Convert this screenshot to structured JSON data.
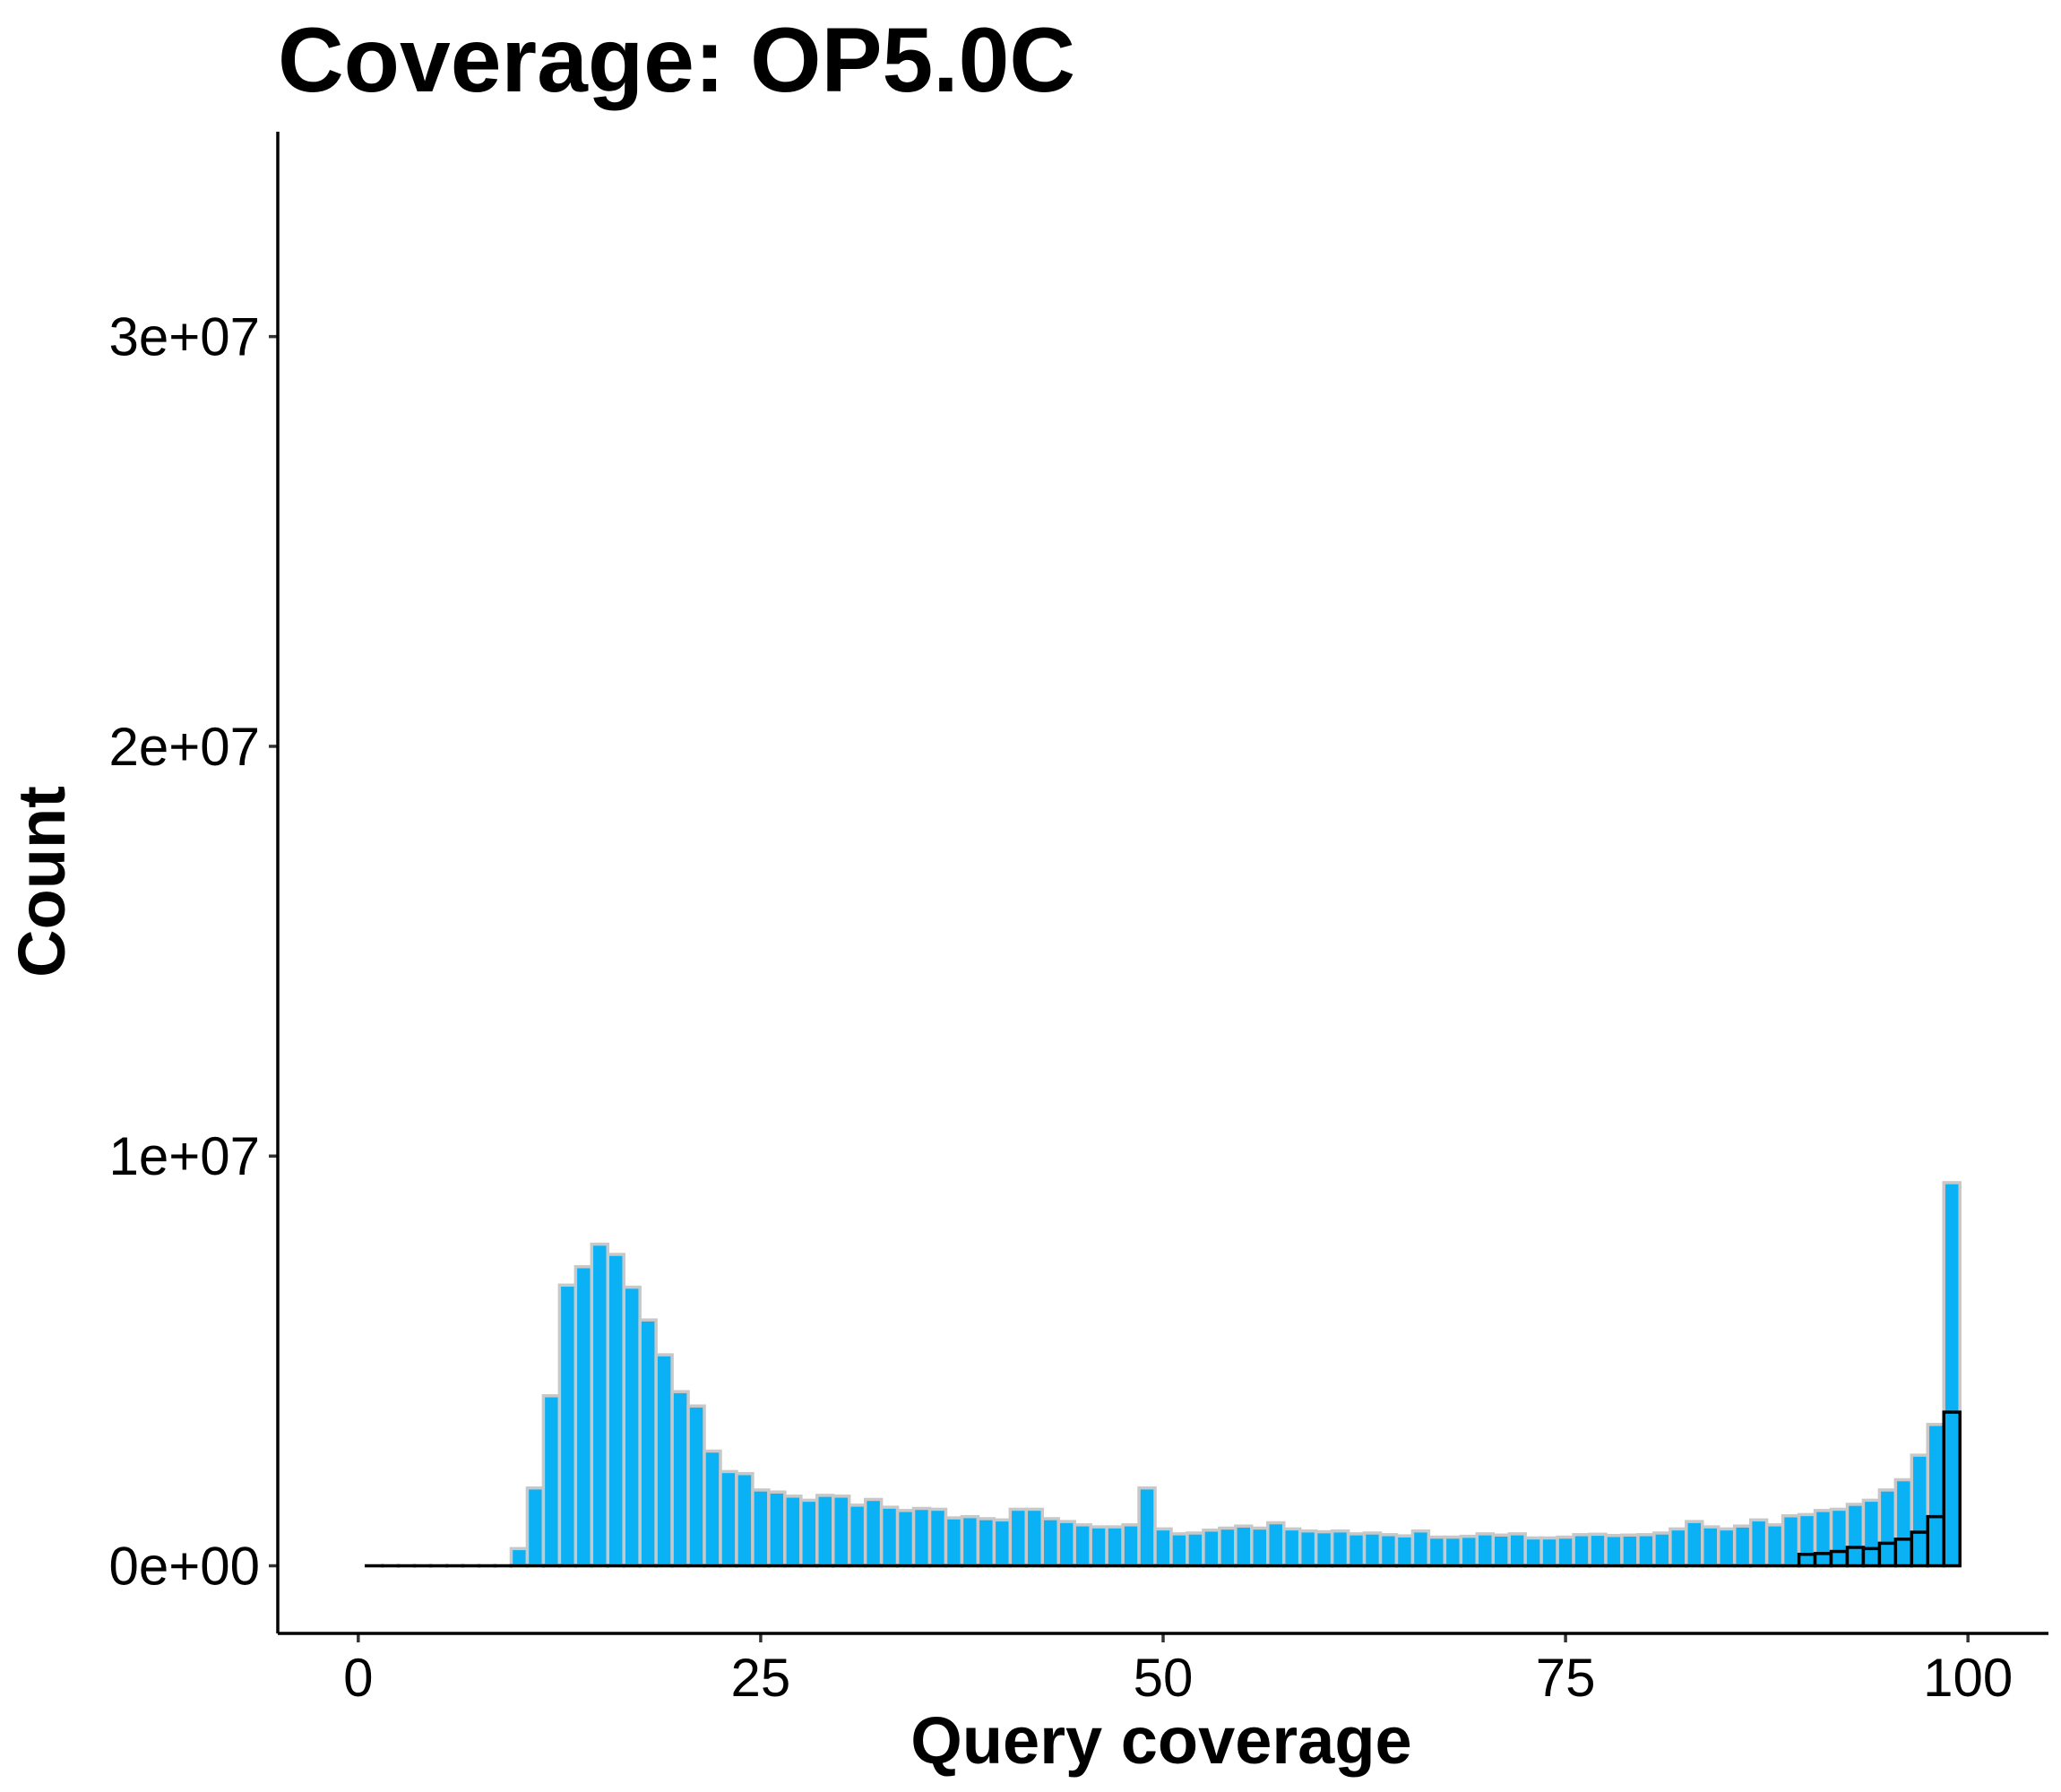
{
  "chart_data": {
    "type": "bar",
    "title": "Coverage: OP5.0C",
    "xlabel": "Query coverage",
    "ylabel": "Count",
    "xlim": [
      -5,
      105
    ],
    "ylim": [
      -1650000,
      35000000
    ],
    "x_ticks": [
      0,
      25,
      50,
      75,
      100
    ],
    "x_tick_labels": [
      "0",
      "25",
      "50",
      "75",
      "100"
    ],
    "y_ticks": [
      0,
      10000000,
      20000000,
      30000000
    ],
    "y_tick_labels": [
      "0e+00",
      "1e+07",
      "2e+07",
      "3e+07"
    ],
    "grid": false,
    "legend": "none",
    "bin_width": 1,
    "series": [
      {
        "fill": "#0AB1F5",
        "outline": "#C8C8C8",
        "bins": [
          {
            "x": 1,
            "value": 0
          },
          {
            "x": 2,
            "value": 0
          },
          {
            "x": 3,
            "value": 0
          },
          {
            "x": 4,
            "value": 0
          },
          {
            "x": 5,
            "value": 0
          },
          {
            "x": 6,
            "value": 0
          },
          {
            "x": 7,
            "value": 0
          },
          {
            "x": 8,
            "value": 0
          },
          {
            "x": 9,
            "value": 0
          },
          {
            "x": 10,
            "value": 420000
          },
          {
            "x": 11,
            "value": 1900000
          },
          {
            "x": 12,
            "value": 4150000
          },
          {
            "x": 13,
            "value": 6850000
          },
          {
            "x": 14,
            "value": 7300000
          },
          {
            "x": 15,
            "value": 7850000
          },
          {
            "x": 16,
            "value": 7600000
          },
          {
            "x": 17,
            "value": 6800000
          },
          {
            "x": 18,
            "value": 6000000
          },
          {
            "x": 19,
            "value": 5150000
          },
          {
            "x": 20,
            "value": 4250000
          },
          {
            "x": 21,
            "value": 3900000
          },
          {
            "x": 22,
            "value": 2800000
          },
          {
            "x": 23,
            "value": 2300000
          },
          {
            "x": 24,
            "value": 2250000
          },
          {
            "x": 25,
            "value": 1850000
          },
          {
            "x": 26,
            "value": 1800000
          },
          {
            "x": 27,
            "value": 1700000
          },
          {
            "x": 28,
            "value": 1600000
          },
          {
            "x": 29,
            "value": 1720000
          },
          {
            "x": 30,
            "value": 1700000
          },
          {
            "x": 31,
            "value": 1480000
          },
          {
            "x": 32,
            "value": 1620000
          },
          {
            "x": 33,
            "value": 1430000
          },
          {
            "x": 34,
            "value": 1350000
          },
          {
            "x": 35,
            "value": 1400000
          },
          {
            "x": 36,
            "value": 1380000
          },
          {
            "x": 37,
            "value": 1170000
          },
          {
            "x": 38,
            "value": 1200000
          },
          {
            "x": 39,
            "value": 1150000
          },
          {
            "x": 40,
            "value": 1120000
          },
          {
            "x": 41,
            "value": 1380000
          },
          {
            "x": 42,
            "value": 1380000
          },
          {
            "x": 43,
            "value": 1150000
          },
          {
            "x": 44,
            "value": 1080000
          },
          {
            "x": 45,
            "value": 1000000
          },
          {
            "x": 46,
            "value": 950000
          },
          {
            "x": 47,
            "value": 950000
          },
          {
            "x": 48,
            "value": 1000000
          },
          {
            "x": 49,
            "value": 1900000
          },
          {
            "x": 50,
            "value": 900000
          },
          {
            "x": 51,
            "value": 780000
          },
          {
            "x": 52,
            "value": 800000
          },
          {
            "x": 53,
            "value": 870000
          },
          {
            "x": 54,
            "value": 920000
          },
          {
            "x": 55,
            "value": 970000
          },
          {
            "x": 56,
            "value": 920000
          },
          {
            "x": 57,
            "value": 1050000
          },
          {
            "x": 58,
            "value": 900000
          },
          {
            "x": 59,
            "value": 850000
          },
          {
            "x": 60,
            "value": 830000
          },
          {
            "x": 61,
            "value": 850000
          },
          {
            "x": 62,
            "value": 780000
          },
          {
            "x": 63,
            "value": 800000
          },
          {
            "x": 64,
            "value": 760000
          },
          {
            "x": 65,
            "value": 730000
          },
          {
            "x": 66,
            "value": 850000
          },
          {
            "x": 67,
            "value": 700000
          },
          {
            "x": 68,
            "value": 700000
          },
          {
            "x": 69,
            "value": 720000
          },
          {
            "x": 70,
            "value": 780000
          },
          {
            "x": 71,
            "value": 750000
          },
          {
            "x": 72,
            "value": 780000
          },
          {
            "x": 73,
            "value": 680000
          },
          {
            "x": 74,
            "value": 680000
          },
          {
            "x": 75,
            "value": 700000
          },
          {
            "x": 76,
            "value": 760000
          },
          {
            "x": 77,
            "value": 770000
          },
          {
            "x": 78,
            "value": 740000
          },
          {
            "x": 79,
            "value": 750000
          },
          {
            "x": 80,
            "value": 760000
          },
          {
            "x": 81,
            "value": 800000
          },
          {
            "x": 82,
            "value": 900000
          },
          {
            "x": 83,
            "value": 1080000
          },
          {
            "x": 84,
            "value": 950000
          },
          {
            "x": 85,
            "value": 900000
          },
          {
            "x": 86,
            "value": 970000
          },
          {
            "x": 87,
            "value": 1120000
          },
          {
            "x": 88,
            "value": 1000000
          },
          {
            "x": 89,
            "value": 1220000
          },
          {
            "x": 90,
            "value": 1250000
          },
          {
            "x": 91,
            "value": 1350000
          },
          {
            "x": 92,
            "value": 1380000
          },
          {
            "x": 93,
            "value": 1500000
          },
          {
            "x": 94,
            "value": 1600000
          },
          {
            "x": 95,
            "value": 1850000
          },
          {
            "x": 96,
            "value": 2100000
          },
          {
            "x": 97,
            "value": 2700000
          },
          {
            "x": 98,
            "value": 3450000
          },
          {
            "x": 99,
            "value": 9350000
          }
        ]
      },
      {
        "fill": "#0AB1F5",
        "outline": "#000000",
        "bins": [
          {
            "x": 1,
            "value": 0
          },
          {
            "x": 2,
            "value": 0
          },
          {
            "x": 3,
            "value": 0
          },
          {
            "x": 4,
            "value": 0
          },
          {
            "x": 5,
            "value": 0
          },
          {
            "x": 6,
            "value": 0
          },
          {
            "x": 7,
            "value": 0
          },
          {
            "x": 8,
            "value": 0
          },
          {
            "x": 9,
            "value": 0
          },
          {
            "x": 10,
            "value": 0
          },
          {
            "x": 11,
            "value": 0
          },
          {
            "x": 12,
            "value": 0
          },
          {
            "x": 13,
            "value": 0
          },
          {
            "x": 14,
            "value": 0
          },
          {
            "x": 15,
            "value": 0
          },
          {
            "x": 16,
            "value": 0
          },
          {
            "x": 17,
            "value": 0
          },
          {
            "x": 18,
            "value": 0
          },
          {
            "x": 19,
            "value": 0
          },
          {
            "x": 20,
            "value": 0
          },
          {
            "x": 21,
            "value": 0
          },
          {
            "x": 22,
            "value": 0
          },
          {
            "x": 23,
            "value": 0
          },
          {
            "x": 24,
            "value": 0
          },
          {
            "x": 25,
            "value": 0
          },
          {
            "x": 26,
            "value": 0
          },
          {
            "x": 27,
            "value": 0
          },
          {
            "x": 28,
            "value": 0
          },
          {
            "x": 29,
            "value": 0
          },
          {
            "x": 30,
            "value": 0
          },
          {
            "x": 31,
            "value": 0
          },
          {
            "x": 32,
            "value": 0
          },
          {
            "x": 33,
            "value": 0
          },
          {
            "x": 34,
            "value": 0
          },
          {
            "x": 35,
            "value": 0
          },
          {
            "x": 36,
            "value": 0
          },
          {
            "x": 37,
            "value": 0
          },
          {
            "x": 38,
            "value": 0
          },
          {
            "x": 39,
            "value": 0
          },
          {
            "x": 40,
            "value": 0
          },
          {
            "x": 41,
            "value": 0
          },
          {
            "x": 42,
            "value": 0
          },
          {
            "x": 43,
            "value": 0
          },
          {
            "x": 44,
            "value": 0
          },
          {
            "x": 45,
            "value": 0
          },
          {
            "x": 46,
            "value": 0
          },
          {
            "x": 47,
            "value": 0
          },
          {
            "x": 48,
            "value": 0
          },
          {
            "x": 49,
            "value": 0
          },
          {
            "x": 50,
            "value": 0
          },
          {
            "x": 51,
            "value": 0
          },
          {
            "x": 52,
            "value": 0
          },
          {
            "x": 53,
            "value": 0
          },
          {
            "x": 54,
            "value": 0
          },
          {
            "x": 55,
            "value": 0
          },
          {
            "x": 56,
            "value": 0
          },
          {
            "x": 57,
            "value": 0
          },
          {
            "x": 58,
            "value": 0
          },
          {
            "x": 59,
            "value": 0
          },
          {
            "x": 60,
            "value": 0
          },
          {
            "x": 61,
            "value": 0
          },
          {
            "x": 62,
            "value": 0
          },
          {
            "x": 63,
            "value": 0
          },
          {
            "x": 64,
            "value": 0
          },
          {
            "x": 65,
            "value": 0
          },
          {
            "x": 66,
            "value": 0
          },
          {
            "x": 67,
            "value": 0
          },
          {
            "x": 68,
            "value": 0
          },
          {
            "x": 69,
            "value": 0
          },
          {
            "x": 70,
            "value": 0
          },
          {
            "x": 71,
            "value": 0
          },
          {
            "x": 72,
            "value": 0
          },
          {
            "x": 73,
            "value": 0
          },
          {
            "x": 74,
            "value": 0
          },
          {
            "x": 75,
            "value": 0
          },
          {
            "x": 76,
            "value": 0
          },
          {
            "x": 77,
            "value": 0
          },
          {
            "x": 78,
            "value": 0
          },
          {
            "x": 79,
            "value": 0
          },
          {
            "x": 80,
            "value": 0
          },
          {
            "x": 81,
            "value": 0
          },
          {
            "x": 82,
            "value": 0
          },
          {
            "x": 83,
            "value": 0
          },
          {
            "x": 84,
            "value": 0
          },
          {
            "x": 85,
            "value": 0
          },
          {
            "x": 86,
            "value": 0
          },
          {
            "x": 87,
            "value": 0
          },
          {
            "x": 88,
            "value": 0
          },
          {
            "x": 89,
            "value": 0
          },
          {
            "x": 90,
            "value": 280000
          },
          {
            "x": 91,
            "value": 300000
          },
          {
            "x": 92,
            "value": 350000
          },
          {
            "x": 93,
            "value": 450000
          },
          {
            "x": 94,
            "value": 420000
          },
          {
            "x": 95,
            "value": 550000
          },
          {
            "x": 96,
            "value": 650000
          },
          {
            "x": 97,
            "value": 820000
          },
          {
            "x": 98,
            "value": 1200000
          },
          {
            "x": 99,
            "value": 3750000
          }
        ]
      }
    ]
  }
}
